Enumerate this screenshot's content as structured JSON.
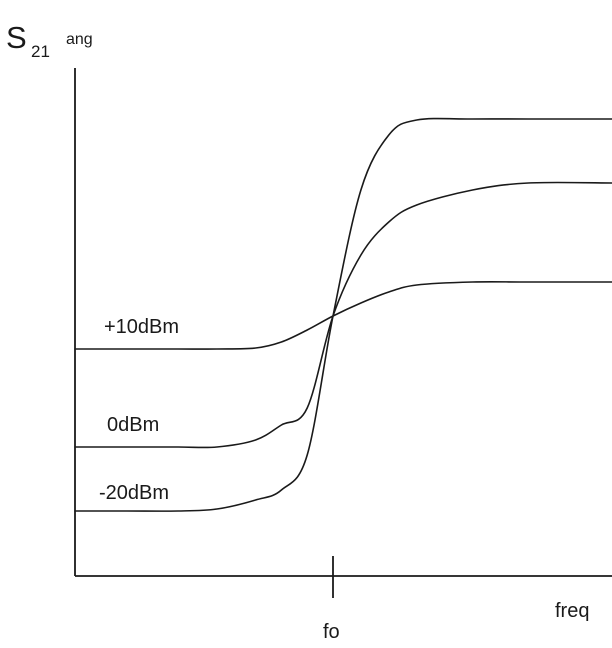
{
  "chart_data": {
    "type": "line",
    "ylabel": {
      "main": "S",
      "sub": "21",
      "sup": "ang"
    },
    "xlabel": "freq",
    "x_tick_label": "fo",
    "x": [
      -1.0,
      -0.8,
      -0.6,
      -0.45,
      -0.3,
      -0.2,
      -0.1,
      0.0,
      0.1,
      0.2,
      0.3,
      0.5,
      0.7,
      1.0
    ],
    "series": [
      {
        "name": "+10dBm",
        "values": [
          349,
          349,
          349,
          349,
          348,
          342,
          330,
          316,
          303,
          292,
          285,
          282,
          282,
          282
        ]
      },
      {
        "name": "0dBm",
        "values": [
          447,
          447,
          447,
          447,
          440,
          425,
          408,
          316,
          255,
          222,
          205,
          190,
          183,
          183
        ]
      },
      {
        "name": "-20dBm",
        "values": [
          511,
          511,
          511,
          509,
          500,
          490,
          455,
          316,
          190,
          135,
          120,
          119,
          119,
          119
        ]
      }
    ]
  }
}
